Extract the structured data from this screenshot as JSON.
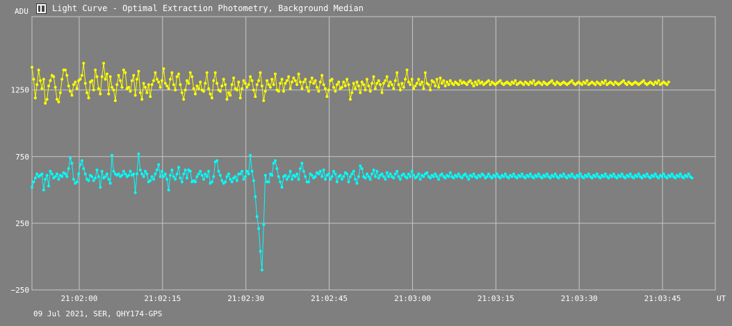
{
  "window": {
    "title": "Light Curve - Optimal Extraction Photometry, Background Median",
    "icon": "lightcurve-app-icon"
  },
  "footer": {
    "info": "09 Jul 2021, SER, QHY174-GPS"
  },
  "colors": {
    "background": "#7f7f7f",
    "grid": "#c8c8c8",
    "series_1": "#ffff00",
    "series_2": "#00ffff"
  },
  "chart_data": {
    "type": "line",
    "ylabel": "ADU",
    "xlabel": "UT",
    "ylim": [
      -250,
      1800
    ],
    "xlim_seconds": [
      -17,
      229
    ],
    "yticks": [
      {
        "value": 1250,
        "label": "1250"
      },
      {
        "value": 750,
        "label": "750"
      },
      {
        "value": 250,
        "label": "250"
      },
      {
        "value": -250,
        "label": "−250"
      }
    ],
    "xticks": [
      {
        "t": 0,
        "label": "21:02:00"
      },
      {
        "t": 30,
        "label": "21:02:15"
      },
      {
        "t": 60,
        "label": "21:02:30"
      },
      {
        "t": 90,
        "label": "21:02:45"
      },
      {
        "t": 120,
        "label": "21:03:00"
      },
      {
        "t": 150,
        "label": "21:03:15"
      },
      {
        "t": 180,
        "label": "21:03:30"
      },
      {
        "t": 210,
        "label": "21:03:45"
      }
    ],
    "x_start": -17,
    "x_step": 0.6,
    "grid": true,
    "series": [
      {
        "color": "#ffff00",
        "values": [
          1420,
          1330,
          1190,
          1290,
          1400,
          1320,
          1260,
          1330,
          1150,
          1180,
          1280,
          1320,
          1360,
          1350,
          1270,
          1180,
          1160,
          1230,
          1330,
          1400,
          1400,
          1360,
          1280,
          1240,
          1210,
          1290,
          1310,
          1260,
          1320,
          1330,
          1360,
          1450,
          1300,
          1230,
          1190,
          1310,
          1320,
          1250,
          1400,
          1350,
          1260,
          1220,
          1350,
          1450,
          1330,
          1370,
          1220,
          1350,
          1270,
          1250,
          1170,
          1290,
          1360,
          1320,
          1270,
          1400,
          1380,
          1260,
          1270,
          1240,
          1320,
          1360,
          1210,
          1330,
          1390,
          1230,
          1180,
          1300,
          1270,
          1230,
          1290,
          1200,
          1290,
          1320,
          1380,
          1330,
          1310,
          1270,
          1320,
          1410,
          1300,
          1280,
          1260,
          1330,
          1380,
          1290,
          1250,
          1350,
          1370,
          1290,
          1230,
          1180,
          1250,
          1320,
          1300,
          1380,
          1350,
          1260,
          1220,
          1280,
          1260,
          1310,
          1250,
          1240,
          1300,
          1380,
          1260,
          1220,
          1190,
          1320,
          1380,
          1300,
          1250,
          1240,
          1280,
          1330,
          1290,
          1180,
          1230,
          1210,
          1290,
          1340,
          1260,
          1250,
          1310,
          1190,
          1260,
          1320,
          1300,
          1270,
          1290,
          1350,
          1320,
          1250,
          1200,
          1290,
          1320,
          1380,
          1280,
          1170,
          1240,
          1320,
          1290,
          1270,
          1330,
          1290,
          1370,
          1250,
          1240,
          1300,
          1330,
          1240,
          1300,
          1320,
          1350,
          1260,
          1310,
          1340,
          1320,
          1290,
          1370,
          1310,
          1260,
          1310,
          1330,
          1270,
          1240,
          1310,
          1340,
          1300,
          1320,
          1270,
          1240,
          1310,
          1360,
          1290,
          1260,
          1200,
          1250,
          1320,
          1330,
          1270,
          1240,
          1290,
          1310,
          1260,
          1270,
          1310,
          1280,
          1330,
          1290,
          1180,
          1230,
          1300,
          1260,
          1310,
          1280,
          1230,
          1310,
          1290,
          1250,
          1330,
          1280,
          1240,
          1300,
          1350,
          1260,
          1300,
          1320,
          1290,
          1230,
          1300,
          1320,
          1350,
          1280,
          1310,
          1290,
          1260,
          1320,
          1380,
          1290,
          1250,
          1300,
          1270,
          1330,
          1400,
          1310,
          1290,
          1330,
          1260,
          1280,
          1300,
          1330,
          1290,
          1310,
          1260,
          1380,
          1300,
          1290,
          1250,
          1320,
          1310,
          1280,
          1330,
          1270,
          1340,
          1300,
          1320,
          1280,
          1310,
          1290,
          1320,
          1300,
          1290,
          1310,
          1300,
          1290,
          1320,
          1300,
          1310,
          1300,
          1290,
          1310,
          1320,
          1300,
          1280,
          1310,
          1290,
          1320,
          1300,
          1310,
          1290,
          1300,
          1310,
          1320,
          1290,
          1310,
          1300,
          1290,
          1300,
          1310,
          1320,
          1300,
          1290,
          1300,
          1310,
          1300,
          1290,
          1310,
          1300,
          1320,
          1290,
          1300,
          1310,
          1300,
          1290,
          1310,
          1300,
          1290,
          1310,
          1300,
          1320,
          1290,
          1300,
          1310,
          1300,
          1290,
          1310,
          1300,
          1290,
          1300,
          1310,
          1320,
          1300,
          1290,
          1310,
          1300,
          1290,
          1300,
          1310,
          1300,
          1290,
          1300,
          1310,
          1320,
          1300,
          1290,
          1300,
          1310,
          1300,
          1290,
          1310,
          1300,
          1320,
          1290,
          1300,
          1310,
          1300,
          1290,
          1310,
          1300,
          1290,
          1310,
          1300,
          1320,
          1290,
          1300,
          1310,
          1300,
          1290,
          1310,
          1300,
          1290,
          1300,
          1310,
          1320,
          1300,
          1290,
          1310,
          1300,
          1290,
          1300,
          1310,
          1300,
          1290,
          1300,
          1310,
          1320,
          1300,
          1290,
          1300,
          1310,
          1300,
          1290,
          1310,
          1300,
          1320,
          1290,
          1300,
          1310,
          1300,
          1290,
          1310
        ]
      },
      {
        "color": "#00ffff",
        "values": [
          520,
          560,
          590,
          620,
          600,
          610,
          620,
          500,
          580,
          610,
          530,
          640,
          620,
          590,
          600,
          620,
          580,
          610,
          600,
          630,
          620,
          600,
          660,
          740,
          700,
          580,
          550,
          560,
          620,
          690,
          720,
          660,
          620,
          580,
          570,
          610,
          600,
          570,
          590,
          650,
          600,
          520,
          640,
          590,
          600,
          620,
          580,
          550,
          760,
          640,
          620,
          610,
          620,
          600,
          610,
          640,
          620,
          600,
          610,
          640,
          610,
          620,
          480,
          620,
          770,
          650,
          620,
          600,
          640,
          620,
          560,
          570,
          600,
          580,
          620,
          650,
          690,
          600,
          640,
          600,
          620,
          580,
          500,
          610,
          650,
          600,
          580,
          620,
          670,
          590,
          560,
          620,
          650,
          590,
          650,
          640,
          560,
          570,
          560,
          600,
          620,
          640,
          610,
          580,
          620,
          600,
          640,
          550,
          560,
          600,
          710,
          720,
          640,
          610,
          570,
          550,
          560,
          600,
          620,
          580,
          560,
          590,
          600,
          570,
          620,
          620,
          640,
          580,
          600,
          640,
          620,
          760,
          640,
          570,
          450,
          300,
          210,
          40,
          -100,
          240,
          610,
          560,
          560,
          620,
          610,
          700,
          720,
          660,
          600,
          560,
          520,
          600,
          610,
          580,
          600,
          640,
          580,
          610,
          600,
          620,
          580,
          660,
          700,
          640,
          600,
          560,
          560,
          620,
          610,
          590,
          600,
          630,
          620,
          640,
          600,
          650,
          580,
          610,
          620,
          580,
          600,
          640,
          620,
          560,
          600,
          610,
          580,
          600,
          630,
          620,
          560,
          600,
          620,
          640,
          580,
          550,
          600,
          680,
          660,
          600,
          590,
          620,
          600,
          580,
          620,
          650,
          600,
          640,
          590,
          610,
          620,
          600,
          580,
          630,
          600,
          620,
          600,
          590,
          620,
          640,
          600,
          580,
          610,
          620,
          600,
          590,
          620,
          600,
          640,
          610,
          590,
          600,
          620,
          580,
          610,
          600,
          620,
          630,
          600,
          590,
          610,
          600,
          620,
          600,
          580,
          610,
          620,
          600,
          590,
          610,
          600,
          630,
          600,
          590,
          610,
          600,
          620,
          600,
          590,
          610,
          620,
          600,
          580,
          610,
          600,
          620,
          600,
          590,
          610,
          600,
          620,
          610,
          590,
          600,
          620,
          600,
          590,
          610,
          600,
          620,
          600,
          590,
          610,
          600,
          620,
          600,
          590,
          610,
          600,
          620,
          600,
          590,
          610,
          600,
          620,
          600,
          590,
          610,
          600,
          620,
          600,
          590,
          610,
          600,
          620,
          600,
          590,
          610,
          600,
          620,
          600,
          590,
          610,
          600,
          620,
          600,
          590,
          610,
          600,
          620,
          600,
          590,
          610,
          600,
          620,
          600,
          590,
          610,
          600,
          620,
          600,
          590,
          610,
          600,
          620,
          600,
          590,
          610,
          600,
          620,
          600,
          590,
          610,
          600,
          620,
          600,
          590,
          610,
          600,
          620,
          600,
          590,
          610,
          600,
          620,
          600,
          590,
          610,
          600,
          620,
          600,
          590,
          610,
          600,
          620,
          600,
          590,
          610,
          600,
          620,
          600,
          590,
          610,
          600,
          620,
          600,
          590,
          610,
          600,
          620,
          600,
          590,
          610,
          600,
          620,
          600,
          590,
          610,
          600,
          620,
          600,
          590,
          610,
          600,
          620,
          600,
          590
        ]
      }
    ]
  }
}
